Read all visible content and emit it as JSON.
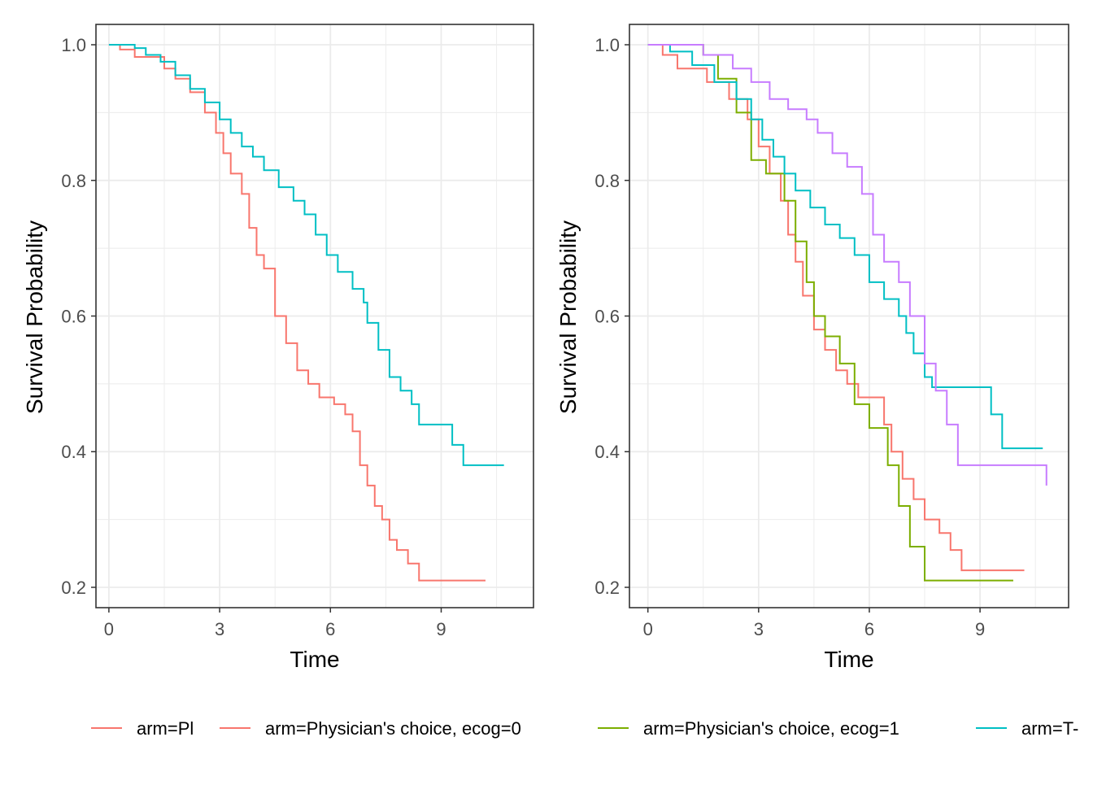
{
  "colors": {
    "red": "#F8766D",
    "green": "#7CAE00",
    "cyan": "#00BFC4",
    "purple": "#C77CFF",
    "grid": "#EBEBEB",
    "panel_border": "#333333"
  },
  "legend": {
    "placement": "bottom",
    "items": [
      {
        "label": "arm=Pl",
        "color": "#F8766D"
      },
      {
        "label": "arm=Physician's choice, ecog=0",
        "color": "#F8766D"
      },
      {
        "label": "arm=Physician's choice, ecog=1",
        "color": "#7CAE00"
      },
      {
        "label": "arm=T-",
        "color": "#00BFC4"
      }
    ]
  },
  "chart_data": [
    {
      "type": "line",
      "step": true,
      "xlabel": "Time",
      "ylabel": "Survival Probability",
      "xlim": [
        -0.35,
        11.5
      ],
      "ylim": [
        0.17,
        1.03
      ],
      "xticks": [
        0,
        3,
        6,
        9
      ],
      "xtick_labels": [
        "0",
        "3",
        "6",
        "9"
      ],
      "yticks": [
        0.2,
        0.4,
        0.6,
        0.8,
        1.0
      ],
      "ytick_labels": [
        "0.2",
        "0.4",
        "0.6",
        "0.8",
        "1.0"
      ],
      "grid": true,
      "series": [
        {
          "color": "#F8766D",
          "x": [
            0,
            0.3,
            0.7,
            1.5,
            1.8,
            2.2,
            2.6,
            2.9,
            3.1,
            3.3,
            3.6,
            3.8,
            4.0,
            4.2,
            4.5,
            4.8,
            5.1,
            5.4,
            5.7,
            6.1,
            6.4,
            6.6,
            6.8,
            7.0,
            7.2,
            7.4,
            7.6,
            7.8,
            8.1,
            8.4,
            10.2
          ],
          "y": [
            1.0,
            0.993,
            0.982,
            0.965,
            0.95,
            0.93,
            0.9,
            0.87,
            0.84,
            0.81,
            0.78,
            0.73,
            0.69,
            0.67,
            0.6,
            0.56,
            0.52,
            0.5,
            0.48,
            0.47,
            0.455,
            0.43,
            0.38,
            0.35,
            0.32,
            0.3,
            0.27,
            0.255,
            0.235,
            0.21,
            0.21
          ]
        },
        {
          "color": "#00BFC4",
          "x": [
            0,
            0.7,
            1.0,
            1.4,
            1.8,
            2.2,
            2.6,
            3.0,
            3.3,
            3.6,
            3.9,
            4.2,
            4.6,
            5.0,
            5.3,
            5.6,
            5.9,
            6.2,
            6.6,
            6.9,
            7.0,
            7.3,
            7.6,
            7.9,
            8.2,
            8.4,
            9.3,
            9.6,
            10.7
          ],
          "y": [
            1.0,
            0.995,
            0.985,
            0.975,
            0.955,
            0.935,
            0.915,
            0.89,
            0.87,
            0.85,
            0.835,
            0.815,
            0.79,
            0.77,
            0.75,
            0.72,
            0.69,
            0.665,
            0.64,
            0.62,
            0.59,
            0.55,
            0.51,
            0.49,
            0.47,
            0.44,
            0.41,
            0.38,
            0.38
          ]
        }
      ]
    },
    {
      "type": "line",
      "step": true,
      "xlabel": "Time",
      "ylabel": "Survival Probability",
      "xlim": [
        -0.5,
        11.4
      ],
      "ylim": [
        0.17,
        1.03
      ],
      "xticks": [
        0,
        3,
        6,
        9
      ],
      "xtick_labels": [
        "0",
        "3",
        "6",
        "9"
      ],
      "yticks": [
        0.2,
        0.4,
        0.6,
        0.8,
        1.0
      ],
      "ytick_labels": [
        "0.2",
        "0.4",
        "0.6",
        "0.8",
        "1.0"
      ],
      "grid": true,
      "series": [
        {
          "color": "#F8766D",
          "x": [
            0,
            0.4,
            0.8,
            1.6,
            2.2,
            2.7,
            3.0,
            3.3,
            3.6,
            3.8,
            4.0,
            4.2,
            4.5,
            4.8,
            5.1,
            5.4,
            5.7,
            6.4,
            6.6,
            6.9,
            7.2,
            7.5,
            7.9,
            8.2,
            8.5,
            10.2
          ],
          "y": [
            1.0,
            0.985,
            0.965,
            0.945,
            0.92,
            0.89,
            0.85,
            0.81,
            0.77,
            0.72,
            0.68,
            0.63,
            0.58,
            0.55,
            0.52,
            0.5,
            0.48,
            0.44,
            0.4,
            0.36,
            0.33,
            0.3,
            0.28,
            0.255,
            0.225,
            0.225
          ]
        },
        {
          "color": "#7CAE00",
          "x": [
            0,
            1.5,
            1.9,
            2.4,
            2.8,
            3.2,
            3.7,
            4.0,
            4.3,
            4.5,
            4.8,
            5.2,
            5.6,
            6.0,
            6.5,
            6.8,
            7.1,
            7.5,
            9.9
          ],
          "y": [
            1.0,
            0.985,
            0.95,
            0.9,
            0.83,
            0.81,
            0.77,
            0.71,
            0.65,
            0.6,
            0.57,
            0.53,
            0.47,
            0.435,
            0.38,
            0.32,
            0.26,
            0.21,
            0.21
          ]
        },
        {
          "color": "#00BFC4",
          "x": [
            0,
            0.6,
            1.2,
            1.8,
            2.4,
            2.8,
            3.1,
            3.4,
            3.7,
            4.0,
            4.4,
            4.8,
            5.2,
            5.6,
            6.0,
            6.4,
            6.8,
            7.0,
            7.2,
            7.5,
            7.7,
            9.3,
            9.6,
            10.7
          ],
          "y": [
            1.0,
            0.99,
            0.97,
            0.945,
            0.92,
            0.89,
            0.86,
            0.835,
            0.81,
            0.785,
            0.76,
            0.735,
            0.715,
            0.69,
            0.65,
            0.625,
            0.6,
            0.575,
            0.545,
            0.51,
            0.495,
            0.455,
            0.405,
            0.405
          ]
        },
        {
          "color": "#C77CFF",
          "x": [
            0,
            1.5,
            2.3,
            2.8,
            3.3,
            3.8,
            4.3,
            4.6,
            5.0,
            5.4,
            5.8,
            6.1,
            6.4,
            6.8,
            7.1,
            7.5,
            7.8,
            8.1,
            8.4,
            10.8
          ],
          "y": [
            1.0,
            0.985,
            0.965,
            0.945,
            0.92,
            0.905,
            0.89,
            0.87,
            0.84,
            0.82,
            0.78,
            0.72,
            0.68,
            0.65,
            0.6,
            0.53,
            0.49,
            0.44,
            0.38,
            0.35
          ]
        }
      ]
    }
  ]
}
